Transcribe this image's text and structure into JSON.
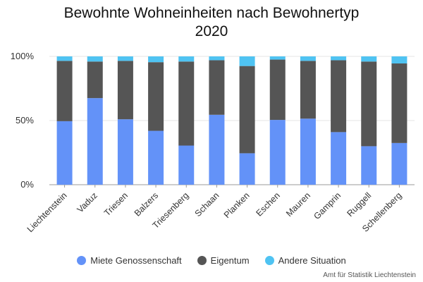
{
  "chart_data": {
    "type": "bar",
    "stacked": true,
    "title": [
      "Bewohnte Wohneinheiten nach Bewohnertyp",
      "2020"
    ],
    "categories": [
      "Liechtenstein",
      "Vaduz",
      "Triesen",
      "Balzers",
      "Triesenberg",
      "Schaan",
      "Planken",
      "Eschen",
      "Mauren",
      "Gamprin",
      "Ruggell",
      "Schellenberg"
    ],
    "series": [
      {
        "name": "Miete Genossenschaft",
        "color": "#6392f8",
        "values": [
          49.5,
          67.5,
          51,
          42,
          30.5,
          54.5,
          24.5,
          50.5,
          51.5,
          41,
          30,
          32.5
        ]
      },
      {
        "name": "Eigentum",
        "color": "#555555",
        "values": [
          47,
          28.5,
          45.5,
          53.5,
          65.5,
          42.5,
          68,
          47,
          45,
          56,
          66,
          62
        ]
      },
      {
        "name": "Andere Situation",
        "color": "#4fc3f2",
        "values": [
          3.5,
          4,
          3.5,
          4.5,
          4,
          3,
          7.5,
          2.5,
          3.5,
          3,
          4,
          5.5
        ]
      }
    ],
    "y_ticks": [
      "0%",
      "50%",
      "100%"
    ],
    "ylim": [
      0,
      100
    ],
    "grid": true,
    "legend_position": "bottom"
  },
  "source": "Amt für Statistik Liechtenstein"
}
